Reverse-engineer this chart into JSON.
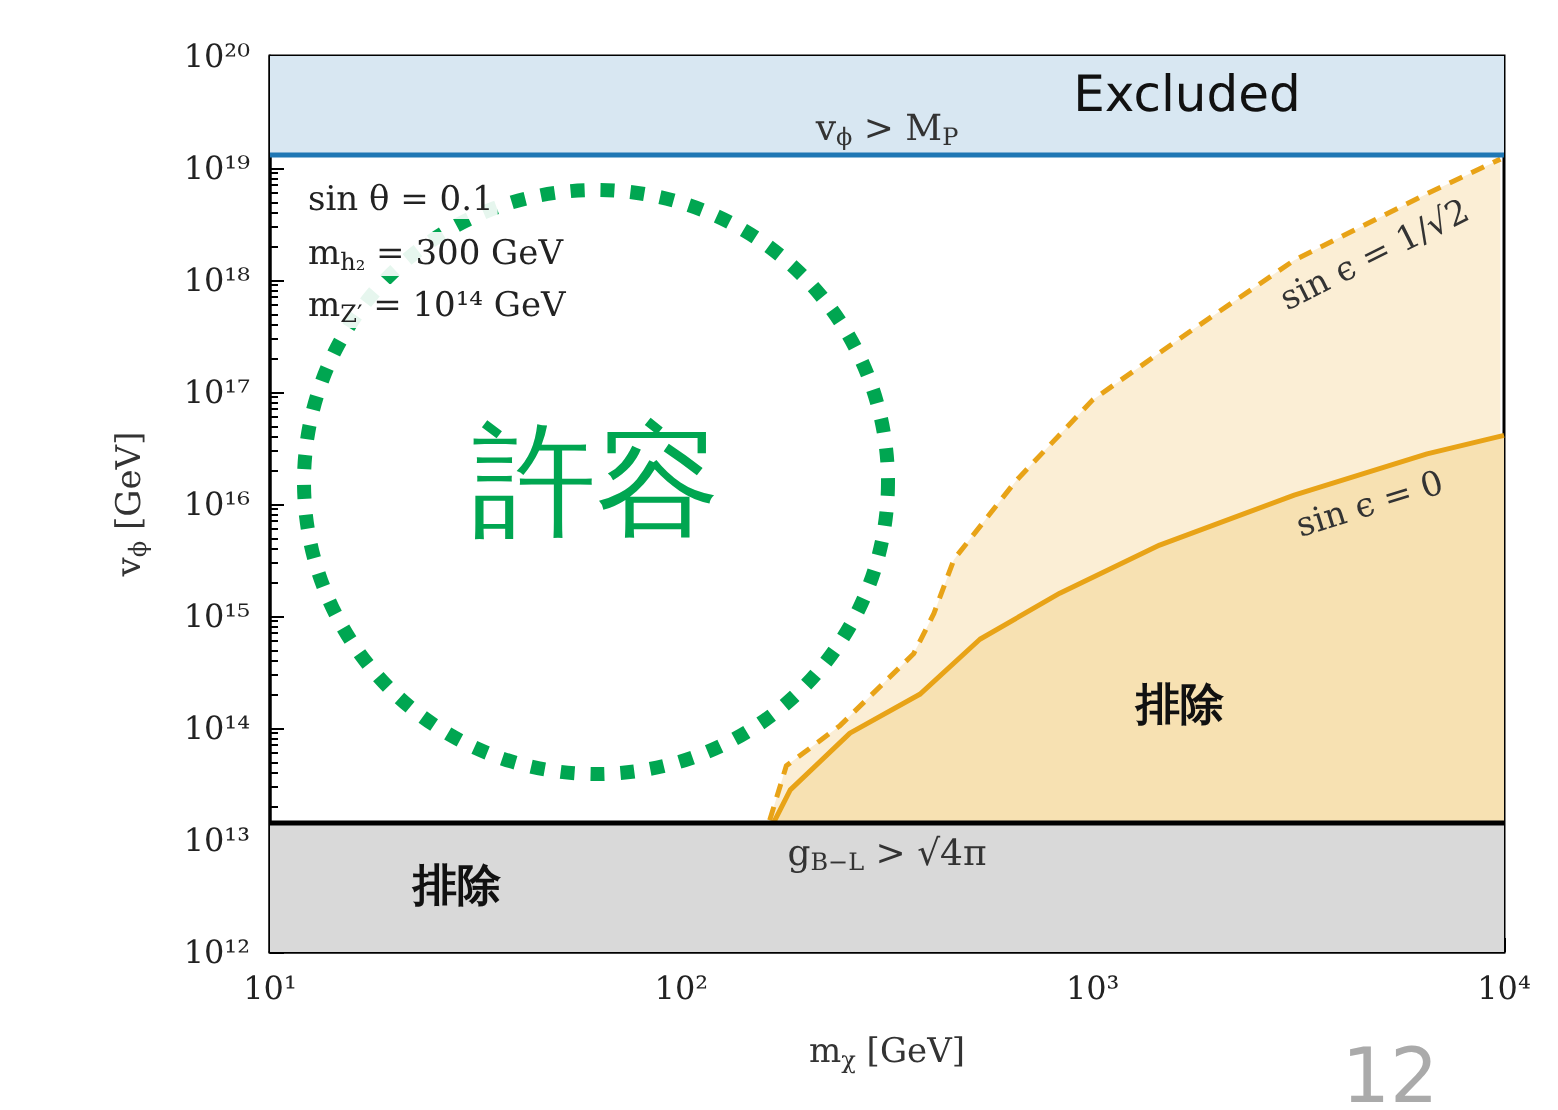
{
  "chart_data": {
    "type": "area",
    "xlabel": "m$_{χ}$ [GeV]",
    "ylabel": "v$_{ϕ}$ [GeV]",
    "log": "xy",
    "xlim": [
      10,
      10000
    ],
    "ylim": [
      1000000000000.0,
      1e+20
    ],
    "xticks": [
      {
        "value": 10,
        "label": "10¹"
      },
      {
        "value": 100,
        "label": "10²"
      },
      {
        "value": 1000,
        "label": "10³"
      },
      {
        "value": 10000,
        "label": "10⁴"
      }
    ],
    "yticks": [
      {
        "value": 1000000000000.0,
        "label": "10¹²"
      },
      {
        "value": 10000000000000.0,
        "label": "10¹³"
      },
      {
        "value": 100000000000000.0,
        "label": "10¹⁴"
      },
      {
        "value": 1000000000000000.0,
        "label": "10¹⁵"
      },
      {
        "value": 1e+16,
        "label": "10¹⁶"
      },
      {
        "value": 1e+17,
        "label": "10¹⁷"
      },
      {
        "value": 1e+18,
        "label": "10¹⁸"
      },
      {
        "value": 1e+19,
        "label": "10¹⁹"
      },
      {
        "value": 1e+20,
        "label": "10²⁰"
      }
    ],
    "series": [
      {
        "name": "sin ϵ = 1/√2",
        "color": "#e8a317",
        "line_style": "dashed",
        "x": [
          164,
          180,
          243,
          367,
          411,
          460,
          650,
          1000,
          1690,
          3090,
          6500,
          9800
        ],
        "values": [
          15000000000000.0,
          46000000000000.0,
          105000000000000.0,
          460000000000000.0,
          1050000000000000.0,
          3200000000000000.0,
          1.6e+16,
          8.5e+16,
          3.3e+17,
          1.5e+18,
          5.9e+18,
          1.2e+19
        ]
      },
      {
        "name": "sin ϵ = 0",
        "color": "#e8a317",
        "line_style": "solid",
        "x": [
          168,
          184,
          257,
          380,
          532,
          832,
          1455,
          3090,
          6500,
          10000
        ],
        "values": [
          14500000000000.0,
          28000000000000.0,
          90000000000000.0,
          200000000000000.0,
          620000000000000.0,
          1600000000000000.0,
          4300000000000000.0,
          1.2e+16,
          2.8e+16,
          4.1e+16
        ]
      }
    ],
    "bands": [
      {
        "axis": "y",
        "from": 1000000000000.0,
        "to": 14500000000000.0,
        "label": "排除",
        "color": "#d9d9d9"
      },
      {
        "axis": "y",
        "from": 1.3e+19,
        "to": 1e+20,
        "label": "Excluded",
        "color": "#d8e7f2"
      }
    ],
    "ref_lines": [
      {
        "axis": "y",
        "value": 14500000000000.0,
        "label": "g$_{B−L}$ > √4π",
        "color": "#000000"
      },
      {
        "axis": "y",
        "value": 1.3e+19,
        "label": "v$_{ϕ}$ > M$_{P}$",
        "color": "#1f77b4"
      }
    ],
    "annotations": [
      "sin θ = 0.1",
      "m$_{h₂}$ = 300 GeV",
      "m$_{Z′}$ = 10¹⁴ GeV",
      "許容",
      "排除",
      "12"
    ]
  }
}
